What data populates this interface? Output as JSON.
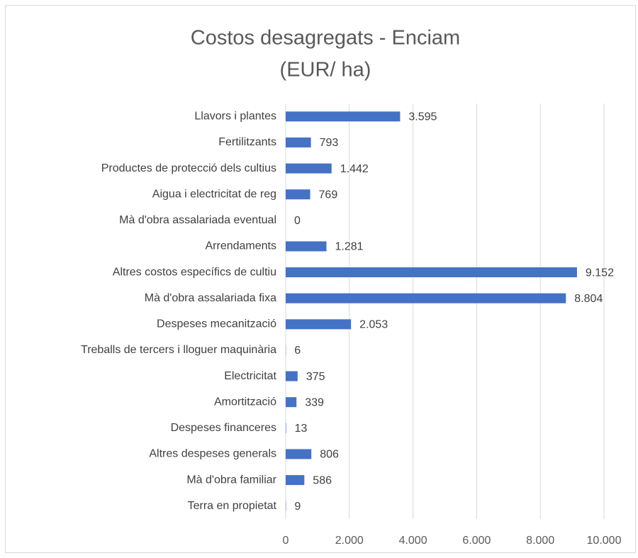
{
  "chart_data": {
    "type": "bar",
    "orientation": "horizontal",
    "title": "Costos desagregats - Enciam",
    "subtitle": "(EUR/ ha)",
    "categories": [
      "Llavors i plantes",
      "Fertilitzants",
      "Productes de protecció dels cultius",
      "Aigua i electricitat de reg",
      "Mà d'obra assalariada eventual",
      "Arrendaments",
      "Altres costos específics de cultiu",
      "Mà d'obra assalariada fixa",
      "Despeses mecanització",
      "Treballs de tercers i lloguer maquinària",
      "Electricitat",
      "Amortització",
      "Despeses financeres",
      "Altres despeses generals",
      "Mà d'obra familiar",
      "Terra en propietat"
    ],
    "values": [
      3595,
      793,
      1442,
      769,
      0,
      1281,
      9152,
      8804,
      2053,
      6,
      375,
      339,
      13,
      806,
      586,
      9
    ],
    "value_labels": [
      "3.595",
      "793",
      "1.442",
      "769",
      "0",
      "1.281",
      "9.152",
      "8.804",
      "2.053",
      "6",
      "375",
      "339",
      "13",
      "806",
      "586",
      "9"
    ],
    "color": "#4472c4",
    "xlim": [
      0,
      10000
    ],
    "xticks": [
      0,
      {
        "value": 2000,
        "label": "2.000"
      },
      {
        "value": 4000,
        "label": "4.000"
      },
      {
        "value": 6000,
        "label": "6.000"
      },
      {
        "value": 8000,
        "label": "8.000"
      },
      {
        "value": 10000,
        "label": "10.000"
      }
    ],
    "grid": true
  }
}
